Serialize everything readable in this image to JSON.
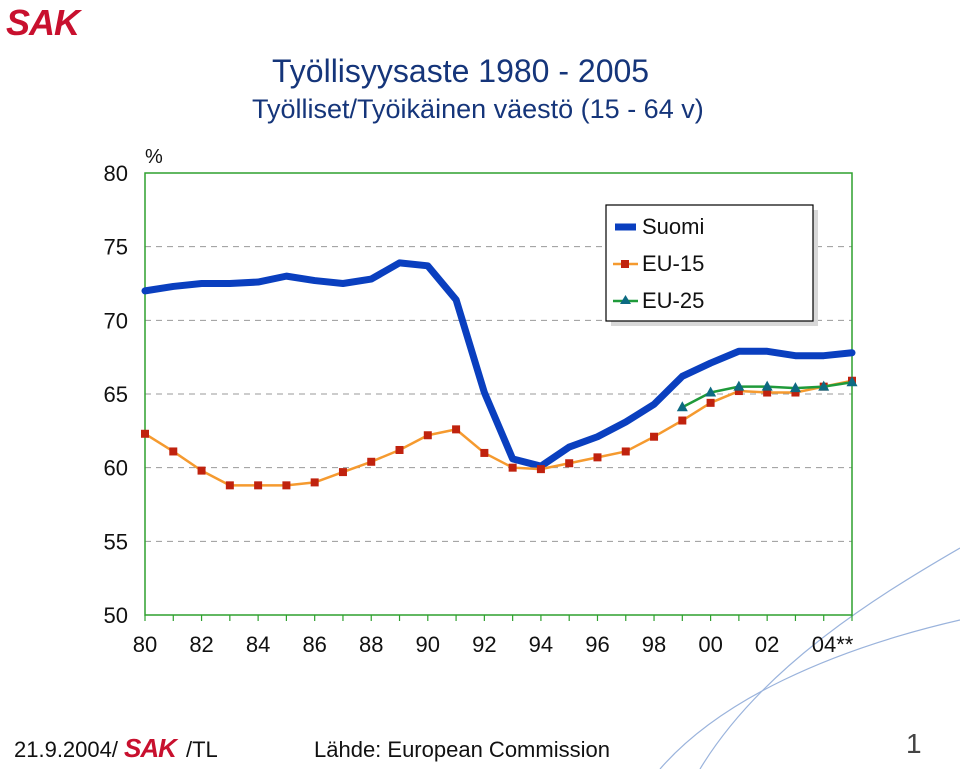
{
  "header": {
    "logo": "SAK",
    "title": "Työllisyysaste 1980 - 2005",
    "subtitle": "Työlliset/Työikäinen väestö (15 - 64 v)"
  },
  "footer": {
    "date": "21.9.2004/",
    "logo": "SAK",
    "initials": "/TL",
    "source": "Lähde: European Commission",
    "page_number": "1"
  },
  "chart_data": {
    "type": "line",
    "ylabel": "%",
    "ylim": [
      50,
      80
    ],
    "yticks": [
      50,
      55,
      60,
      65,
      70,
      75,
      80
    ],
    "x": [
      1980,
      1981,
      1982,
      1983,
      1984,
      1985,
      1986,
      1987,
      1988,
      1989,
      1990,
      1991,
      1992,
      1993,
      1994,
      1995,
      1996,
      1997,
      1998,
      1999,
      2000,
      2001,
      2002,
      2003,
      2004,
      2005
    ],
    "xticks": [
      {
        "x": 1980,
        "label": "80"
      },
      {
        "x": 1982,
        "label": "82"
      },
      {
        "x": 1984,
        "label": "84"
      },
      {
        "x": 1986,
        "label": "86"
      },
      {
        "x": 1988,
        "label": "88"
      },
      {
        "x": 1990,
        "label": "90"
      },
      {
        "x": 1992,
        "label": "92"
      },
      {
        "x": 1994,
        "label": "94"
      },
      {
        "x": 1996,
        "label": "96"
      },
      {
        "x": 1998,
        "label": "98"
      },
      {
        "x": 2000,
        "label": "00"
      },
      {
        "x": 2002,
        "label": "02"
      },
      {
        "x": 2004,
        "label": "04**"
      }
    ],
    "legend_position": "top-right",
    "grid": "dashed horizontal",
    "series": [
      {
        "name": "Suomi",
        "color": "#0a3fbf",
        "marker": "none",
        "values": [
          72.0,
          72.3,
          72.5,
          72.5,
          72.6,
          73.0,
          72.7,
          72.5,
          72.8,
          73.9,
          73.7,
          71.4,
          65.1,
          60.6,
          60.1,
          61.4,
          62.1,
          63.1,
          64.3,
          66.2,
          67.1,
          67.9,
          67.9,
          67.6,
          67.6,
          67.8
        ]
      },
      {
        "name": "EU-15",
        "color": "#f59a2f",
        "marker": "square",
        "marker_color": "#c0220e",
        "values": [
          62.3,
          61.1,
          59.8,
          58.8,
          58.8,
          58.8,
          59.0,
          59.7,
          60.4,
          61.2,
          62.2,
          62.6,
          61.0,
          60.0,
          59.9,
          60.3,
          60.7,
          61.1,
          62.1,
          63.2,
          64.4,
          65.2,
          65.1,
          65.1,
          65.5,
          65.9
        ]
      },
      {
        "name": "EU-25",
        "color": "#1f9a3a",
        "marker": "triangle",
        "marker_color": "#0d6a82",
        "values": [
          null,
          null,
          null,
          null,
          null,
          null,
          null,
          null,
          null,
          null,
          null,
          null,
          null,
          null,
          null,
          null,
          null,
          null,
          null,
          64.1,
          65.1,
          65.5,
          65.5,
          65.4,
          65.5,
          65.8
        ]
      }
    ]
  }
}
